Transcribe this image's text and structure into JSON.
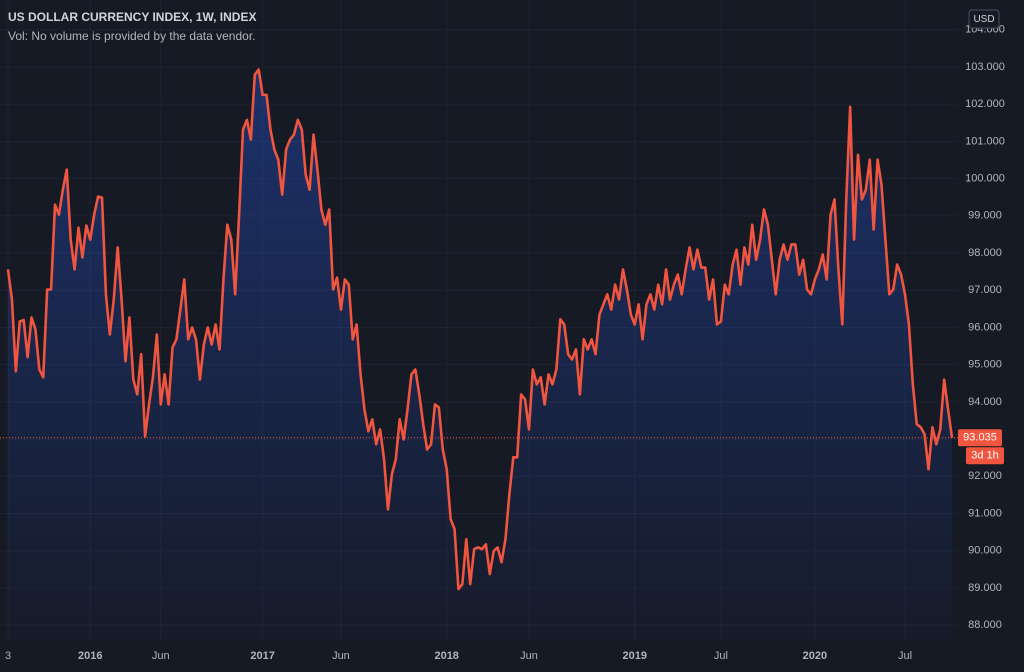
{
  "chart_data": {
    "type": "area",
    "title": "US DOLLAR CURRENCY INDEX, 1W, INDEX",
    "subtitle": "Vol: No volume is provided by the data vendor.",
    "currency": "USD",
    "countdown": "3d 1h",
    "color": "#f0553f",
    "grid": true,
    "categories": [
      "3",
      null,
      null,
      null,
      null,
      null,
      null,
      null,
      null,
      null,
      null,
      null,
      null,
      null,
      null,
      null,
      null,
      null,
      null,
      null,
      null,
      "2016",
      null,
      null,
      null,
      null,
      null,
      null,
      null,
      null,
      null,
      null,
      null,
      null,
      null,
      null,
      null,
      null,
      null,
      "Jun",
      null,
      null,
      null,
      null,
      null,
      null,
      null,
      null,
      null,
      null,
      null,
      null,
      null,
      null,
      null,
      null,
      null,
      null,
      null,
      null,
      null,
      null,
      null,
      null,
      null,
      "2017",
      null,
      null,
      null,
      null,
      null,
      null,
      null,
      null,
      null,
      null,
      null,
      null,
      null,
      null,
      null,
      null,
      null,
      null,
      null,
      "Jun",
      null,
      null,
      null,
      null,
      null,
      null,
      null,
      null,
      null,
      null,
      null,
      null,
      null,
      null,
      null,
      null,
      null,
      null,
      null,
      null,
      null,
      null,
      null,
      null,
      null,
      null,
      "2018",
      null,
      null,
      null,
      null,
      null,
      null,
      null,
      null,
      null,
      null,
      null,
      null,
      null,
      null,
      null,
      null,
      null,
      null,
      null,
      null,
      "Jun",
      null,
      null,
      null,
      null,
      null,
      null,
      null,
      null,
      null,
      null,
      null,
      null,
      null,
      null,
      null,
      null,
      null,
      null,
      null,
      null,
      null,
      null,
      null,
      null,
      null,
      null,
      "2019",
      null,
      null,
      null,
      null,
      null,
      null,
      null,
      null,
      null,
      null,
      null,
      null,
      null,
      null,
      null,
      null,
      null,
      null,
      null,
      null,
      null,
      "Jul",
      null,
      null,
      null,
      null,
      null,
      null,
      null,
      null,
      null,
      null,
      null,
      null,
      null,
      null,
      null,
      null,
      null,
      null,
      null,
      null,
      null,
      null,
      null,
      "2020",
      null,
      null,
      null,
      null,
      null,
      null,
      null,
      null,
      null,
      null,
      null,
      null,
      null,
      null,
      null,
      null,
      null,
      null,
      null,
      null,
      null,
      null,
      "Jul",
      null,
      null,
      null,
      null,
      null,
      null,
      null,
      null,
      null,
      null,
      null,
      null
    ],
    "values": [
      97.56,
      96.75,
      94.82,
      96.16,
      96.2,
      95.2,
      96.27,
      95.95,
      94.87,
      94.66,
      97.02,
      97.02,
      99.3,
      99.03,
      99.7,
      100.24,
      98.36,
      97.56,
      98.68,
      97.88,
      98.74,
      98.36,
      99.03,
      99.52,
      99.49,
      96.89,
      95.81,
      96.75,
      98.15,
      96.75,
      95.09,
      96.27,
      94.6,
      94.2,
      95.28,
      93.07,
      93.93,
      94.66,
      95.81,
      93.93,
      94.74,
      93.93,
      95.46,
      95.68,
      96.48,
      97.29,
      95.68,
      96.0,
      95.68,
      94.6,
      95.54,
      96.0,
      95.54,
      96.08,
      95.41,
      97.29,
      98.76,
      98.36,
      96.89,
      99.03,
      101.32,
      101.58,
      101.05,
      102.79,
      102.93,
      102.25,
      102.25,
      101.32,
      100.78,
      100.51,
      99.57,
      100.78,
      101.05,
      101.18,
      101.58,
      101.32,
      100.11,
      99.7,
      101.18,
      100.24,
      99.17,
      98.76,
      99.17,
      97.02,
      97.34,
      96.48,
      97.29,
      97.15,
      95.68,
      96.08,
      94.74,
      93.8,
      93.21,
      93.53,
      92.86,
      93.26,
      92.46,
      91.11,
      92.05,
      92.46,
      93.53,
      92.99,
      93.8,
      94.74,
      94.87,
      94.2,
      93.4,
      92.72,
      92.86,
      93.93,
      93.85,
      92.72,
      92.19,
      90.85,
      90.58,
      88.97,
      89.1,
      90.31,
      89.1,
      90.04,
      90.09,
      90.04,
      90.17,
      89.37,
      89.99,
      90.09,
      89.69,
      90.31,
      91.52,
      92.51,
      92.51,
      94.2,
      94.07,
      93.26,
      94.87,
      94.47,
      94.66,
      93.93,
      94.74,
      94.47,
      94.87,
      96.22,
      96.08,
      95.28,
      95.14,
      95.41,
      94.2,
      95.68,
      95.41,
      95.68,
      95.28,
      96.35,
      96.62,
      96.89,
      96.48,
      97.15,
      96.75,
      97.56,
      97.02,
      96.35,
      96.08,
      96.62,
      95.68,
      96.62,
      96.89,
      96.48,
      97.15,
      96.62,
      97.56,
      96.75,
      97.15,
      97.42,
      96.89,
      97.56,
      98.15,
      97.56,
      98.09,
      97.61,
      97.61,
      96.75,
      97.29,
      96.08,
      96.16,
      97.15,
      96.89,
      97.69,
      98.09,
      97.15,
      98.15,
      97.69,
      98.76,
      97.82,
      98.36,
      99.17,
      98.76,
      97.82,
      96.89,
      97.82,
      98.23,
      97.82,
      98.23,
      98.23,
      97.42,
      97.82,
      97.02,
      96.89,
      97.29,
      97.56,
      97.96,
      97.29,
      99.03,
      99.44,
      97.56,
      96.08,
      99.44,
      101.93,
      98.36,
      100.64,
      99.44,
      99.7,
      100.51,
      98.63,
      100.51,
      99.84,
      98.36,
      96.89,
      97.02,
      97.69,
      97.42,
      96.89,
      96.08,
      94.47,
      93.4,
      93.32,
      93.13,
      92.19,
      93.32,
      92.86,
      93.26,
      94.6,
      93.8,
      93.035
    ],
    "ylim": [
      87.6,
      104.8
    ],
    "yticks": [
      {
        "value": 88,
        "label": "88.000"
      },
      {
        "value": 89,
        "label": "89.000"
      },
      {
        "value": 90,
        "label": "90.000"
      },
      {
        "value": 91,
        "label": "91.000"
      },
      {
        "value": 92,
        "label": "92.000"
      },
      {
        "value": 93,
        "label": "93.000"
      },
      {
        "value": 94,
        "label": "94.000"
      },
      {
        "value": 95,
        "label": "95.000"
      },
      {
        "value": 96,
        "label": "96.000"
      },
      {
        "value": 97,
        "label": "97.000"
      },
      {
        "value": 98,
        "label": "98.000"
      },
      {
        "value": 99,
        "label": "99.000"
      },
      {
        "value": 100,
        "label": "100.000"
      },
      {
        "value": 101,
        "label": "101.000"
      },
      {
        "value": 102,
        "label": "102.000"
      },
      {
        "value": 103,
        "label": "103.000"
      },
      {
        "value": 104,
        "label": "104.000"
      }
    ]
  }
}
